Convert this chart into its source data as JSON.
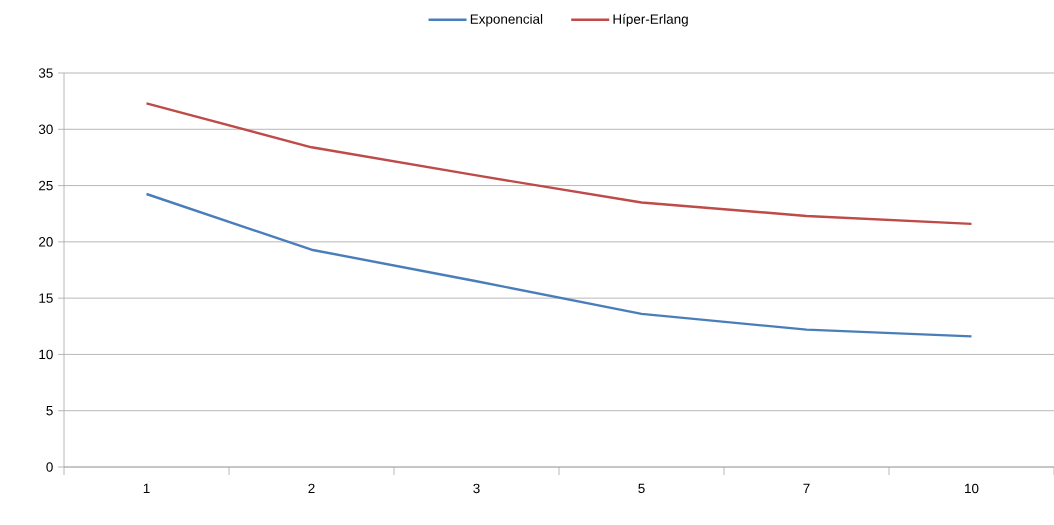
{
  "chart_data": {
    "type": "line",
    "categories": [
      "1",
      "2",
      "3",
      "5",
      "7",
      "10"
    ],
    "series": [
      {
        "name": "Exponencial",
        "color": "#4a7ebb",
        "values": [
          24.25,
          19.3,
          16.5,
          13.6,
          12.2,
          11.6
        ]
      },
      {
        "name": "Híper-Erlang",
        "color": "#be4b48",
        "values": [
          32.3,
          28.4,
          25.9,
          23.5,
          22.3,
          21.6
        ]
      }
    ],
    "ylim": [
      0,
      35
    ],
    "yticks": [
      0,
      5,
      10,
      15,
      20,
      25,
      30,
      35
    ],
    "grid": "y",
    "legend": "top",
    "marker": "none",
    "line_style": "solid"
  }
}
